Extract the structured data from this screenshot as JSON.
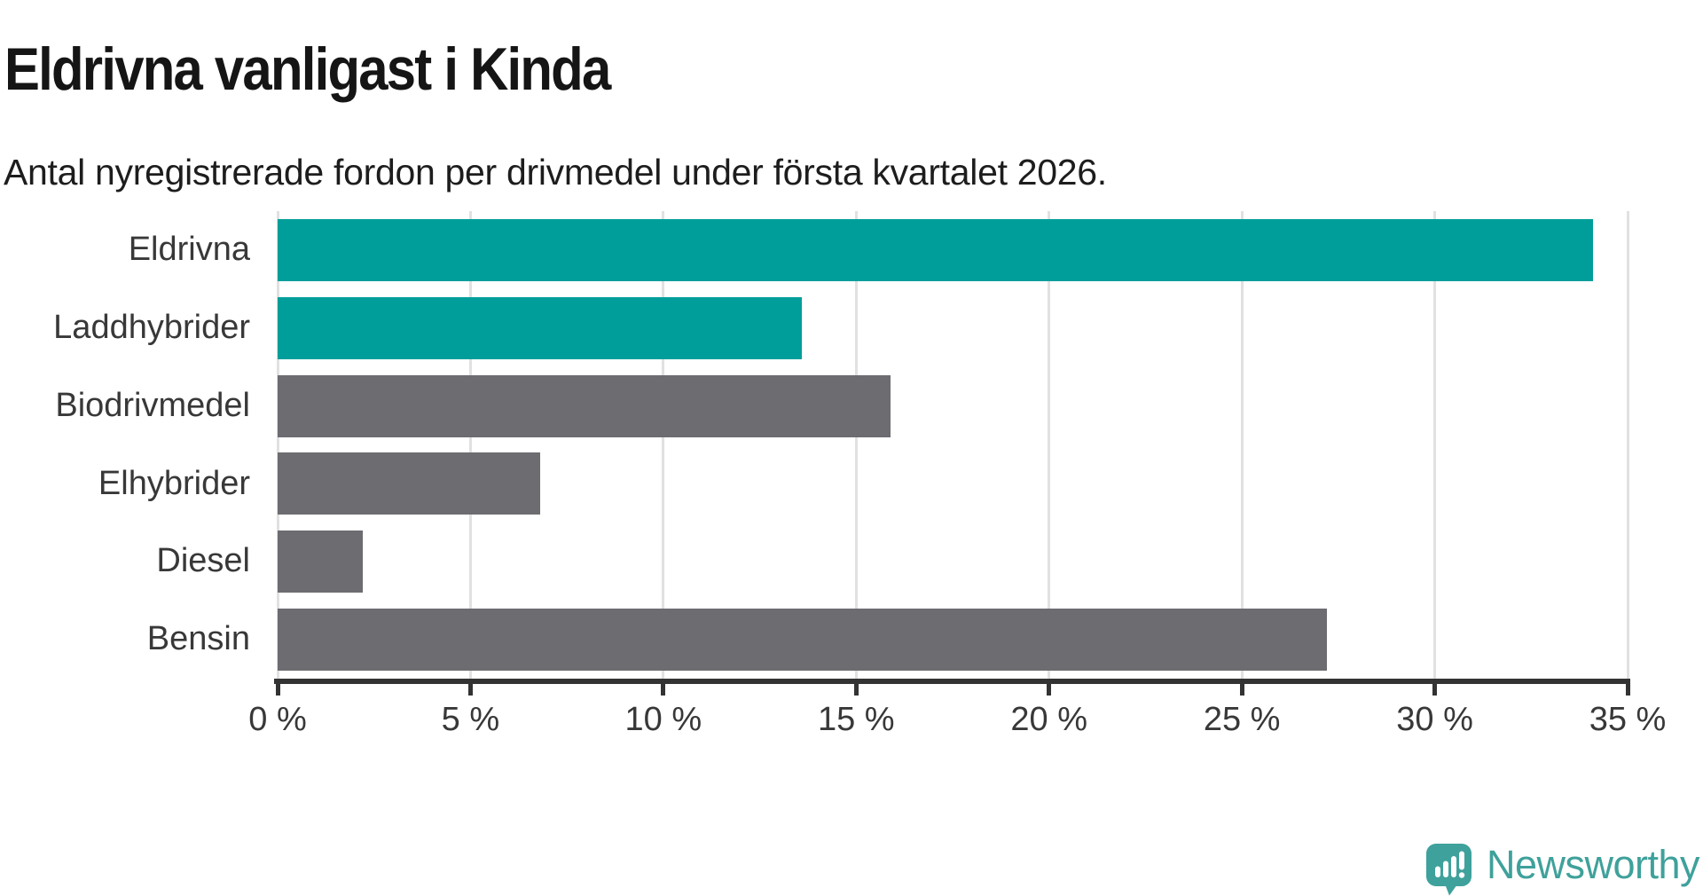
{
  "header": {
    "title": "Eldrivna vanligast i Kinda",
    "subtitle": "Antal nyregistrerade fordon per drivmedel under första kvartalet 2026."
  },
  "chart_data": {
    "type": "bar",
    "orientation": "horizontal",
    "title": "Eldrivna vanligast i Kinda",
    "subtitle": "Antal nyregistrerade fordon per drivmedel under första kvartalet 2026.",
    "categories": [
      "Eldrivna",
      "Laddhybrider",
      "Biodrivmedel",
      "Elhybrider",
      "Diesel",
      "Bensin"
    ],
    "values": [
      34.1,
      13.6,
      15.9,
      6.8,
      2.2,
      27.2
    ],
    "unit": "%",
    "xlim": [
      0,
      35
    ],
    "x_ticks": {
      "values": [
        0,
        5,
        10,
        15,
        20,
        25,
        30,
        35
      ],
      "labels": [
        "0 %",
        "5 %",
        "10 %",
        "15 %",
        "20 %",
        "25 %",
        "30 %",
        "35 %"
      ]
    },
    "grid": true,
    "legend": "none",
    "bar_colors": [
      "#009e9a",
      "#009e9a",
      "#6c6c71",
      "#6c6c71",
      "#6c6c71",
      "#6c6c71"
    ],
    "colors": {
      "highlight": "#009e9a",
      "default_bar": "#6c6c71",
      "axis": "#333333",
      "gridline": "#e1e1e1",
      "label_text": "#383838",
      "title_text": "#151515"
    }
  },
  "footer": {
    "brand": "Newsworthy",
    "logo_icon": "newsworthy-speech-bubble-chart-icon",
    "logo_color": "#3fa19b"
  }
}
